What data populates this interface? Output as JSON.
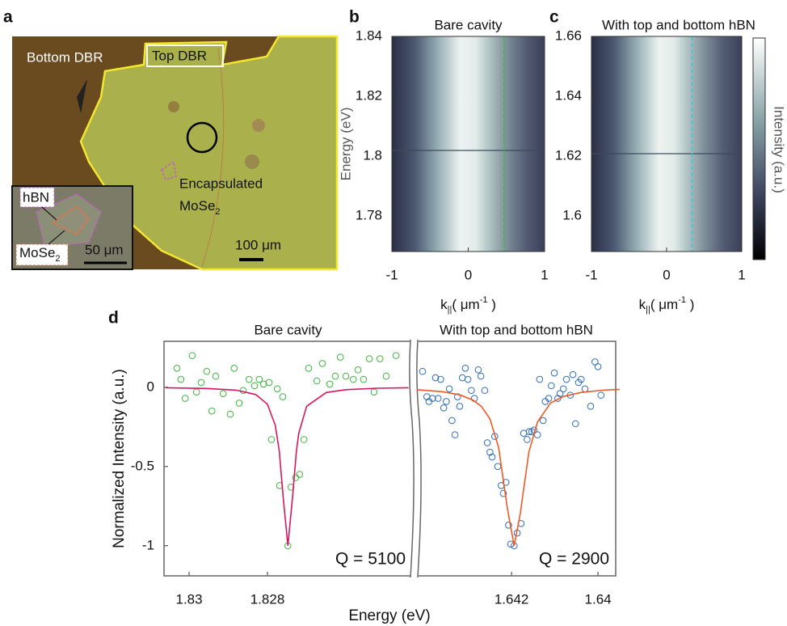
{
  "panel_labels": [
    "a",
    "b",
    "c",
    "d"
  ],
  "micrograph": {
    "bottom_dbr": "Bottom DBR",
    "top_dbr": "Top DBR",
    "encapsulated": "Encapsulated",
    "mose2": [
      "MoSe",
      "2"
    ],
    "scale_bar": "100 μm",
    "inset": {
      "hbn": "hBN",
      "mose2": [
        "MoSe",
        "2"
      ],
      "scale_bar": "50 μm"
    }
  },
  "chart_data": [
    {
      "type": "heatmap",
      "title": "Bare cavity",
      "ylabel": "Energy (eV)",
      "xlabel_parts": [
        "k",
        "||",
        "( μm",
        "-1",
        " )"
      ],
      "xlim": [
        -1,
        1
      ],
      "xticks": [
        -1,
        0,
        1
      ],
      "ylim": [
        1.7681,
        1.84
      ],
      "yticks": [
        1.78,
        1.8,
        1.82,
        1.84
      ],
      "dashed_line_x": 0.47,
      "dashed_color": "#3cbf3c"
    },
    {
      "type": "heatmap",
      "title": "With top and bottom hBN",
      "xlabel_parts": [
        "k",
        "||",
        "( μm",
        "-1",
        " )"
      ],
      "colorbar_label": "Intensity (a.u.)",
      "xlim": [
        -1,
        1
      ],
      "xticks": [
        -1,
        0,
        1
      ],
      "ylim": [
        1.5881,
        1.66
      ],
      "yticks": [
        1.6,
        1.62,
        1.64,
        1.66
      ],
      "dashed_line_x": 0.34,
      "dashed_color": "#39c6d6"
    },
    {
      "type": "scatter",
      "title": "Bare cavity",
      "ylabel": "Normalized Intensity (a.u.)",
      "xlabel": "Energy (eV)",
      "annotation": "Q = 5100",
      "xlim": [
        1.83064,
        1.82431
      ],
      "xticks": [
        1.83,
        1.828
      ],
      "ylim": [
        -1.19,
        0.29
      ],
      "yticks": [
        -1,
        -0.5,
        0
      ],
      "series": [
        {
          "style": "markers",
          "color": "#3cb43c",
          "x": [
            1.83031,
            1.83021,
            1.8301,
            1.82992,
            1.82981,
            1.82969,
            1.82955,
            1.82942,
            1.82932,
            1.82913,
            1.82895,
            1.82885,
            1.82872,
            1.82862,
            1.82847,
            1.82833,
            1.82821,
            1.8281,
            1.82796,
            1.8279,
            1.82775,
            1.82769,
            1.82761,
            1.82748,
            1.8274,
            1.82728,
            1.82718,
            1.82707,
            1.82695,
            1.82674,
            1.8266,
            1.82641,
            1.82627,
            1.82614,
            1.826,
            1.82581,
            1.82569,
            1.82555,
            1.8254,
            1.82528,
            1.82513,
            1.82497,
            1.82472
          ],
          "values": [
            0.12,
            0.05,
            -0.07,
            0.2,
            -0.03,
            0.03,
            0.1,
            -0.15,
            0.07,
            -0.04,
            -0.17,
            0.12,
            -0.1,
            -0.02,
            0.05,
            0.01,
            0.05,
            0.02,
            0.03,
            -0.33,
            -0.01,
            -0.62,
            -0.06,
            -1,
            -0.63,
            -0.57,
            -0.55,
            -0.33,
            0.12,
            0.04,
            0.15,
            0.02,
            0.07,
            0.19,
            0.07,
            0.05,
            0.11,
            0.05,
            0.18,
            -0.03,
            0.18,
            0.07,
            0.2
          ]
        },
        {
          "style": "line",
          "color": "#d6175f",
          "x": [
            1.8306,
            1.8295,
            1.8288,
            1.8283,
            1.828,
            1.8278,
            1.8277,
            1.8276,
            1.82748,
            1.82736,
            1.82726,
            1.8272,
            1.827,
            1.8265,
            1.826,
            1.8252,
            1.8244
          ],
          "values": [
            -0.003,
            -0.008,
            -0.018,
            -0.046,
            -0.107,
            -0.24,
            -0.4,
            -0.69,
            -1,
            -0.69,
            -0.4,
            -0.29,
            -0.12,
            -0.033,
            -0.015,
            -0.006,
            -0.003
          ]
        }
      ]
    },
    {
      "type": "scatter",
      "title": "With top and bottom hBN",
      "annotation": "Q = 2900",
      "xlim": [
        1.64419,
        1.63959
      ],
      "xticks": [
        1.642,
        1.64
      ],
      "ylim": [
        -1.19,
        0.29
      ],
      "series": [
        {
          "style": "markers",
          "color": "#2e6db5",
          "x": [
            1.64406,
            1.64396,
            1.64391,
            1.64383,
            1.64376,
            1.6437,
            1.64364,
            1.64357,
            1.64351,
            1.64344,
            1.64338,
            1.64331,
            1.64325,
            1.6432,
            1.64314,
            1.64307,
            1.64301,
            1.64293,
            1.64286,
            1.64277,
            1.64271,
            1.64262,
            1.64256,
            1.6425,
            1.64245,
            1.64239,
            1.64232,
            1.64224,
            1.64219,
            1.64213,
            1.64207,
            1.64202,
            1.64194,
            1.64187,
            1.64178,
            1.64172,
            1.64164,
            1.64159,
            1.64153,
            1.64148,
            1.6414,
            1.64135,
            1.64127,
            1.64122,
            1.64114,
            1.64108,
            1.64101,
            1.64093,
            1.64088,
            1.6408,
            1.64073,
            1.64064,
            1.64058,
            1.64052,
            1.64045,
            1.64039,
            1.6403,
            1.64017,
            1.64007,
            1.64,
            1.63993
          ],
          "values": [
            0.1,
            -0.06,
            -0.09,
            -0.07,
            0.06,
            -0.07,
            0.05,
            -0.13,
            -0.09,
            -0.01,
            -0.21,
            -0.3,
            -0.06,
            -0.12,
            0.06,
            0.12,
            0.05,
            -0.02,
            -0.07,
            0.11,
            0.07,
            -0.02,
            -0.35,
            -0.41,
            -0.44,
            -0.31,
            -0.5,
            -0.62,
            -0.67,
            -0.6,
            -0.87,
            -0.99,
            -1,
            -0.92,
            -0.86,
            -0.29,
            -0.33,
            -0.28,
            -0.28,
            -0.27,
            -0.3,
            0.05,
            -0.21,
            -0.09,
            -0.07,
            0.01,
            0.09,
            -0.07,
            -0.04,
            -0.01,
            0.05,
            -0.05,
            0.08,
            -0.23,
            0.03,
            0.05,
            -0.01,
            -0.12,
            0.16,
            0.13,
            -0.05
          ]
        },
        {
          "style": "line",
          "color": "#ee5a24",
          "x": [
            1.6442,
            1.6436,
            1.6432,
            1.6429,
            1.6427,
            1.6425,
            1.6423,
            1.6421,
            1.64194,
            1.6418,
            1.6416,
            1.6414,
            1.6411,
            1.6408,
            1.6404,
            1.6399,
            1.6395
          ],
          "values": [
            -0.015,
            -0.028,
            -0.048,
            -0.08,
            -0.12,
            -0.2,
            -0.38,
            -0.76,
            -1,
            -0.8,
            -0.41,
            -0.22,
            -0.1,
            -0.058,
            -0.033,
            -0.019,
            -0.013
          ]
        }
      ]
    }
  ]
}
